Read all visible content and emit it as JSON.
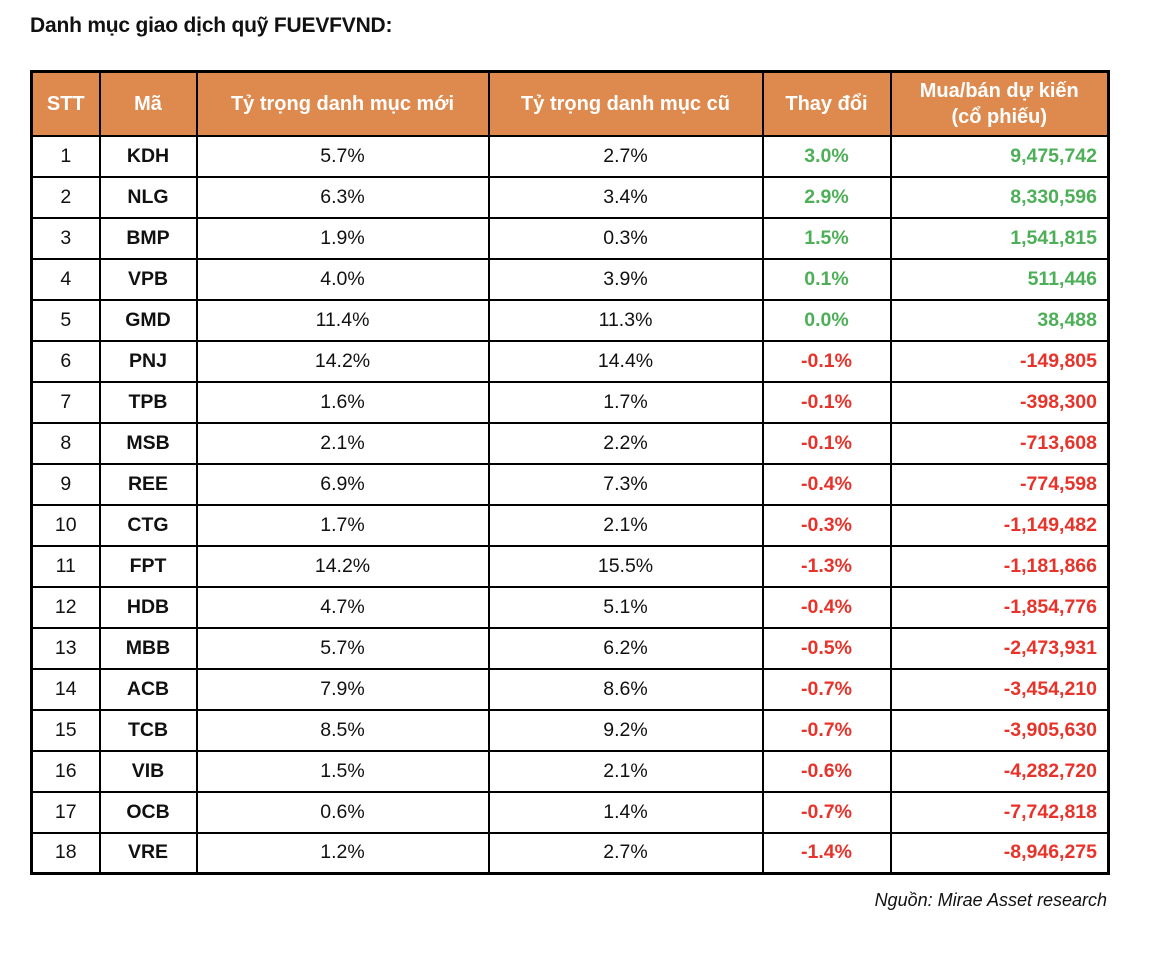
{
  "title": "Danh mục giao dịch quỹ FUEVFVND:",
  "source": "Nguồn: Mirae Asset research",
  "colors": {
    "header_bg": "#DE8A4E",
    "positive_green": "#4DAF57",
    "negative_red": "#E8332A",
    "border": "#000000"
  },
  "table": {
    "headers": {
      "stt": "STT",
      "ma": "Mã",
      "new_weight": "Tỷ trọng danh mục mới",
      "old_weight": "Tỷ trọng danh mục cũ",
      "change": "Thay đổi",
      "shares_line1": "Mua/bán dự kiến",
      "shares_line2": "(cổ phiếu)"
    },
    "rows": [
      {
        "stt": "1",
        "ma": "KDH",
        "new_weight": "5.7%",
        "old_weight": "2.7%",
        "change": "3.0%",
        "shares": "9,475,742",
        "trend": "up"
      },
      {
        "stt": "2",
        "ma": "NLG",
        "new_weight": "6.3%",
        "old_weight": "3.4%",
        "change": "2.9%",
        "shares": "8,330,596",
        "trend": "up"
      },
      {
        "stt": "3",
        "ma": "BMP",
        "new_weight": "1.9%",
        "old_weight": "0.3%",
        "change": "1.5%",
        "shares": "1,541,815",
        "trend": "up"
      },
      {
        "stt": "4",
        "ma": "VPB",
        "new_weight": "4.0%",
        "old_weight": "3.9%",
        "change": "0.1%",
        "shares": "511,446",
        "trend": "up"
      },
      {
        "stt": "5",
        "ma": "GMD",
        "new_weight": "11.4%",
        "old_weight": "11.3%",
        "change": "0.0%",
        "shares": "38,488",
        "trend": "up"
      },
      {
        "stt": "6",
        "ma": "PNJ",
        "new_weight": "14.2%",
        "old_weight": "14.4%",
        "change": "-0.1%",
        "shares": "-149,805",
        "trend": "down"
      },
      {
        "stt": "7",
        "ma": "TPB",
        "new_weight": "1.6%",
        "old_weight": "1.7%",
        "change": "-0.1%",
        "shares": "-398,300",
        "trend": "down"
      },
      {
        "stt": "8",
        "ma": "MSB",
        "new_weight": "2.1%",
        "old_weight": "2.2%",
        "change": "-0.1%",
        "shares": "-713,608",
        "trend": "down"
      },
      {
        "stt": "9",
        "ma": "REE",
        "new_weight": "6.9%",
        "old_weight": "7.3%",
        "change": "-0.4%",
        "shares": "-774,598",
        "trend": "down"
      },
      {
        "stt": "10",
        "ma": "CTG",
        "new_weight": "1.7%",
        "old_weight": "2.1%",
        "change": "-0.3%",
        "shares": "-1,149,482",
        "trend": "down"
      },
      {
        "stt": "11",
        "ma": "FPT",
        "new_weight": "14.2%",
        "old_weight": "15.5%",
        "change": "-1.3%",
        "shares": "-1,181,866",
        "trend": "down"
      },
      {
        "stt": "12",
        "ma": "HDB",
        "new_weight": "4.7%",
        "old_weight": "5.1%",
        "change": "-0.4%",
        "shares": "-1,854,776",
        "trend": "down"
      },
      {
        "stt": "13",
        "ma": "MBB",
        "new_weight": "5.7%",
        "old_weight": "6.2%",
        "change": "-0.5%",
        "shares": "-2,473,931",
        "trend": "down"
      },
      {
        "stt": "14",
        "ma": "ACB",
        "new_weight": "7.9%",
        "old_weight": "8.6%",
        "change": "-0.7%",
        "shares": "-3,454,210",
        "trend": "down"
      },
      {
        "stt": "15",
        "ma": "TCB",
        "new_weight": "8.5%",
        "old_weight": "9.2%",
        "change": "-0.7%",
        "shares": "-3,905,630",
        "trend": "down"
      },
      {
        "stt": "16",
        "ma": "VIB",
        "new_weight": "1.5%",
        "old_weight": "2.1%",
        "change": "-0.6%",
        "shares": "-4,282,720",
        "trend": "down"
      },
      {
        "stt": "17",
        "ma": "OCB",
        "new_weight": "0.6%",
        "old_weight": "1.4%",
        "change": "-0.7%",
        "shares": "-7,742,818",
        "trend": "down"
      },
      {
        "stt": "18",
        "ma": "VRE",
        "new_weight": "1.2%",
        "old_weight": "2.7%",
        "change": "-1.4%",
        "shares": "-8,946,275",
        "trend": "down"
      }
    ]
  }
}
